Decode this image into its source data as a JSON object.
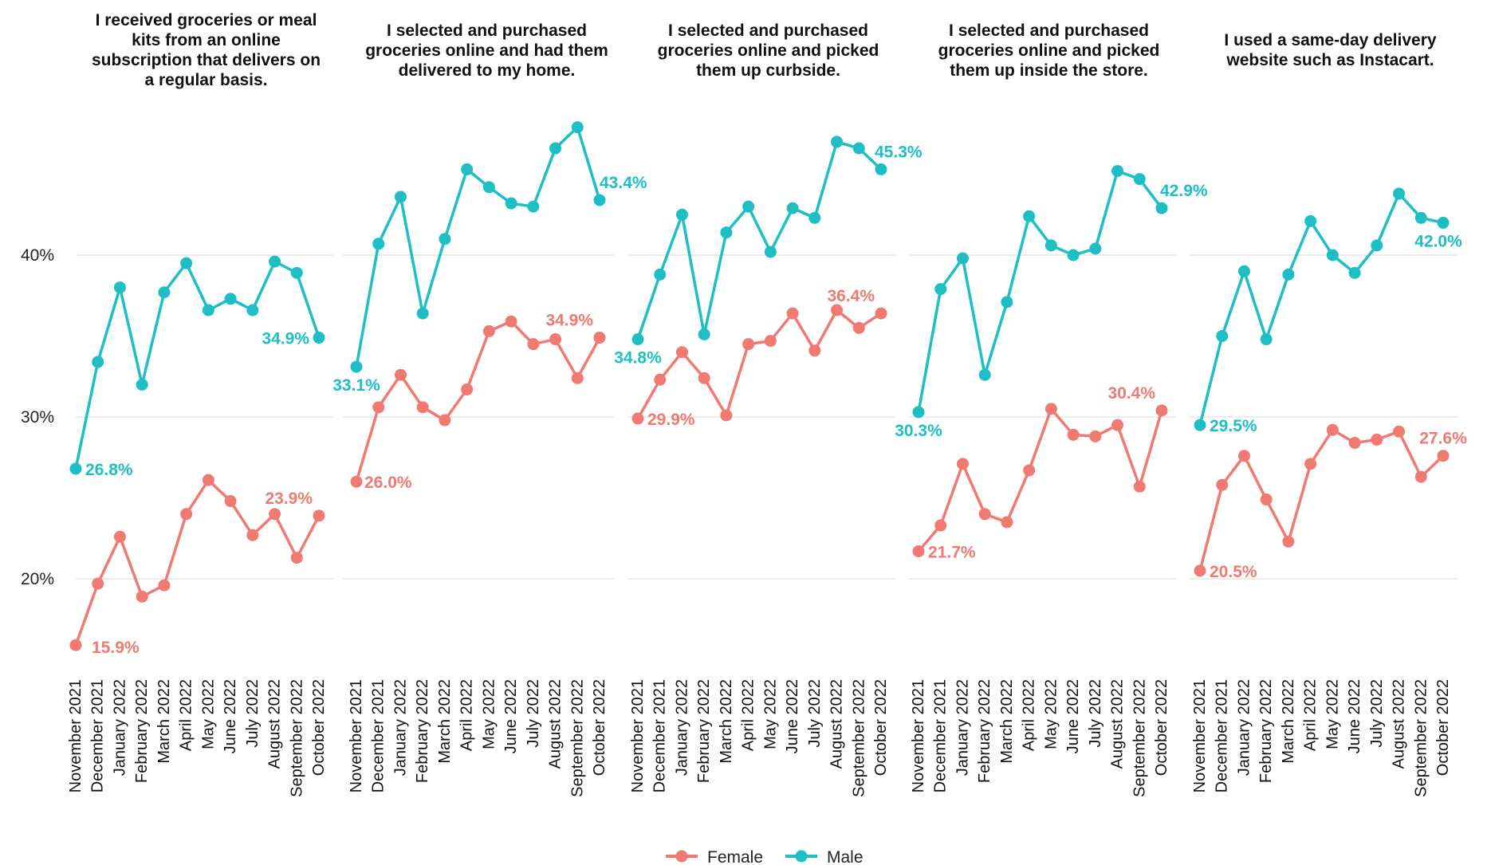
{
  "chart_data": {
    "type": "line",
    "x": [
      "November 2021",
      "December 2021",
      "January 2022",
      "February 2022",
      "March 2022",
      "April 2022",
      "May 2022",
      "June 2022",
      "July 2022",
      "August 2022",
      "September 2022",
      "October 2022"
    ],
    "ylim": [
      16,
      48
    ],
    "yticks": [
      20,
      30,
      40
    ],
    "ytick_labels": [
      "20%",
      "30%",
      "40%"
    ],
    "grid": true,
    "legend": {
      "position": "bottom",
      "entries": [
        {
          "name": "Female",
          "color": "#f07a72"
        },
        {
          "name": "Male",
          "color": "#1dbfc5"
        }
      ]
    },
    "panels": [
      {
        "title": [
          "I received groceries or meal",
          "kits from an online",
          "subscription that delivers on",
          "a regular basis."
        ],
        "series": [
          {
            "name": "Female",
            "color": "#f07a72",
            "values": [
              15.9,
              19.7,
              22.6,
              18.9,
              19.6,
              24.0,
              26.1,
              24.8,
              22.7,
              24.0,
              21.3,
              23.9
            ]
          },
          {
            "name": "Male",
            "color": "#1dbfc5",
            "values": [
              26.8,
              33.4,
              38.0,
              32.0,
              37.7,
              39.5,
              36.6,
              37.3,
              36.6,
              39.6,
              38.9,
              34.9
            ]
          }
        ],
        "labels": [
          {
            "series": "Female",
            "index": 0,
            "text": "15.9%"
          },
          {
            "series": "Female",
            "index": 11,
            "text": "23.9%"
          },
          {
            "series": "Male",
            "index": 0,
            "text": "26.8%"
          },
          {
            "series": "Male",
            "index": 11,
            "text": "34.9%"
          }
        ]
      },
      {
        "title": [
          "I selected and purchased",
          "groceries online and had them",
          "delivered to my home."
        ],
        "series": [
          {
            "name": "Female",
            "color": "#f07a72",
            "values": [
              26.0,
              30.6,
              32.6,
              30.6,
              29.8,
              31.7,
              35.3,
              35.9,
              34.5,
              34.8,
              32.4,
              34.9
            ]
          },
          {
            "name": "Male",
            "color": "#1dbfc5",
            "values": [
              33.1,
              40.7,
              43.6,
              36.4,
              41.0,
              45.3,
              44.2,
              43.2,
              43.0,
              46.6,
              47.9,
              43.4
            ]
          }
        ],
        "labels": [
          {
            "series": "Female",
            "index": 0,
            "text": "26.0%"
          },
          {
            "series": "Female",
            "index": 11,
            "text": "34.9%"
          },
          {
            "series": "Male",
            "index": 0,
            "text": "33.1%"
          },
          {
            "series": "Male",
            "index": 11,
            "text": "43.4%"
          }
        ]
      },
      {
        "title": [
          "I selected and purchased",
          "groceries online and picked",
          "them up curbside."
        ],
        "series": [
          {
            "name": "Female",
            "color": "#f07a72",
            "values": [
              29.9,
              32.3,
              34.0,
              32.4,
              30.1,
              34.5,
              34.7,
              36.4,
              34.1,
              36.6,
              35.5,
              36.4
            ]
          },
          {
            "name": "Male",
            "color": "#1dbfc5",
            "values": [
              34.8,
              38.8,
              42.5,
              35.1,
              41.4,
              43.0,
              40.2,
              42.9,
              42.3,
              47.0,
              46.6,
              45.3
            ]
          }
        ],
        "labels": [
          {
            "series": "Female",
            "index": 0,
            "text": "29.9%"
          },
          {
            "series": "Female",
            "index": 11,
            "text": "36.4%"
          },
          {
            "series": "Male",
            "index": 0,
            "text": "34.8%"
          },
          {
            "series": "Male",
            "index": 11,
            "text": "45.3%"
          }
        ]
      },
      {
        "title": [
          "I selected and purchased",
          "groceries online and picked",
          "them up inside the store."
        ],
        "series": [
          {
            "name": "Female",
            "color": "#f07a72",
            "values": [
              21.7,
              23.3,
              27.1,
              24.0,
              23.5,
              26.7,
              30.5,
              28.9,
              28.8,
              29.5,
              25.7,
              30.4
            ]
          },
          {
            "name": "Male",
            "color": "#1dbfc5",
            "values": [
              30.3,
              37.9,
              39.8,
              32.6,
              37.1,
              42.4,
              40.6,
              40.0,
              40.4,
              45.2,
              44.7,
              42.9
            ]
          }
        ],
        "labels": [
          {
            "series": "Female",
            "index": 0,
            "text": "21.7%"
          },
          {
            "series": "Female",
            "index": 11,
            "text": "30.4%"
          },
          {
            "series": "Male",
            "index": 0,
            "text": "30.3%"
          },
          {
            "series": "Male",
            "index": 11,
            "text": "42.9%"
          }
        ]
      },
      {
        "title": [
          "I used a same-day delivery",
          "website such as Instacart."
        ],
        "series": [
          {
            "name": "Female",
            "color": "#f07a72",
            "values": [
              20.5,
              25.8,
              27.6,
              24.9,
              22.3,
              27.1,
              29.2,
              28.4,
              28.6,
              29.1,
              26.3,
              27.6
            ]
          },
          {
            "name": "Male",
            "color": "#1dbfc5",
            "values": [
              29.5,
              35.0,
              39.0,
              34.8,
              38.8,
              42.1,
              40.0,
              38.9,
              40.6,
              43.8,
              42.3,
              42.0
            ]
          }
        ],
        "labels": [
          {
            "series": "Female",
            "index": 0,
            "text": "20.5%"
          },
          {
            "series": "Female",
            "index": 11,
            "text": "27.6%"
          },
          {
            "series": "Male",
            "index": 0,
            "text": "29.5%"
          },
          {
            "series": "Male",
            "index": 11,
            "text": "42.0%"
          }
        ]
      }
    ]
  }
}
